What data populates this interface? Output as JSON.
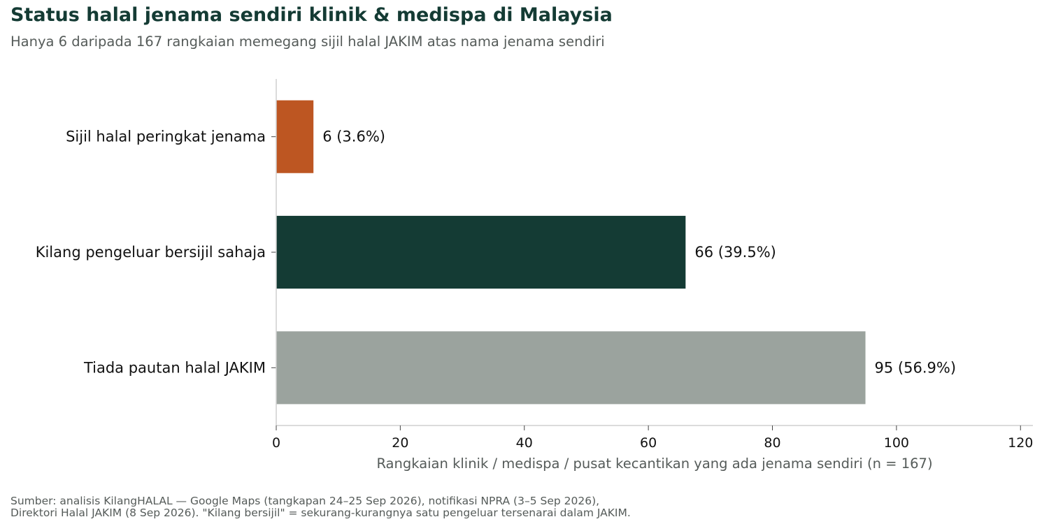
{
  "chart_data": {
    "type": "bar",
    "orientation": "horizontal",
    "title": "Status halal jenama sendiri klinik & medispa di Malaysia",
    "subtitle": "Hanya 6 daripada 167 rangkaian memegang sijil halal JAKIM atas nama jenama sendiri",
    "categories": [
      "Sijil halal peringkat jenama",
      "Kilang pengeluar bersijil sahaja",
      "Tiada pautan halal JAKIM"
    ],
    "values": [
      6,
      66,
      95
    ],
    "value_labels": [
      "6  (3.6%)",
      "66  (39.5%)",
      "95  (56.9%)"
    ],
    "colors": [
      "#bd5622",
      "#143b34",
      "#9ba39e"
    ],
    "xlabel": "Rangkaian klinik / medispa / pusat kecantikan yang ada jenama sendiri (n = 167)",
    "ylabel": "",
    "xlim": [
      0,
      122
    ],
    "xticks": [
      0,
      20,
      40,
      60,
      80,
      100,
      120
    ],
    "grid": false,
    "legend": "none"
  },
  "source": {
    "line1": "Sumber: analisis KilangHALAL — Google Maps (tangkapan 24–25 Sep 2026), notifikasi NPRA (3–5 Sep 2026),",
    "line2": "Direktori Halal JAKIM (8 Sep 2026). \"Kilang bersijil\" = sekurang-kurangnya satu pengeluar tersenarai dalam JAKIM."
  }
}
